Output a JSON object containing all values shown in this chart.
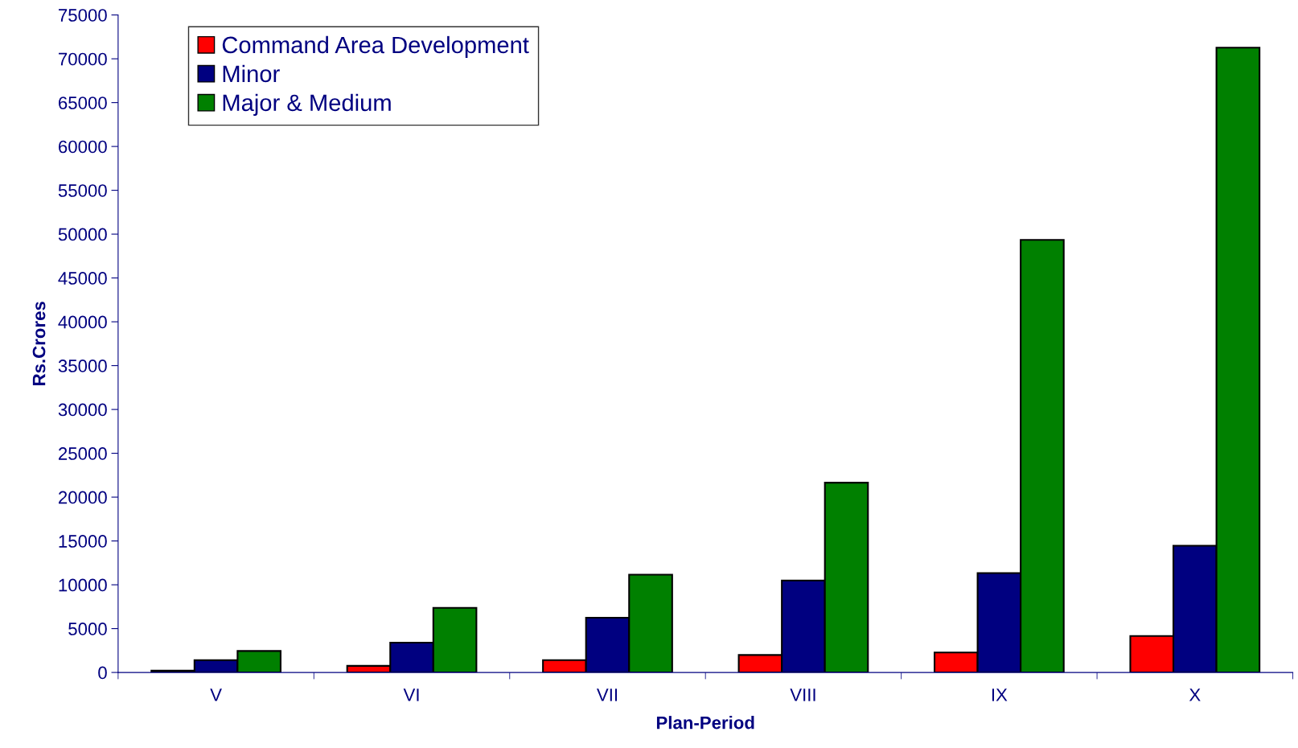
{
  "chart_data": {
    "type": "bar",
    "xlabel": "Plan-Period",
    "ylabel": "Rs.Crores",
    "categories": [
      "V",
      "VI",
      "VII",
      "VIII",
      "IX",
      "X"
    ],
    "series": [
      {
        "name": "Command Area Development",
        "color": "#ff0000",
        "values": [
          200,
          750,
          1400,
          1990,
          2270,
          4160
        ]
      },
      {
        "name": "Minor",
        "color": "#000080",
        "values": [
          1400,
          3400,
          6240,
          10490,
          11340,
          14460
        ]
      },
      {
        "name": "Major & Medium",
        "color": "#008000",
        "values": [
          2450,
          7370,
          11150,
          21650,
          49340,
          71270
        ]
      }
    ],
    "ylim": [
      0,
      75000
    ],
    "yticks": [
      0,
      5000,
      10000,
      15000,
      20000,
      25000,
      30000,
      35000,
      40000,
      45000,
      50000,
      55000,
      60000,
      65000,
      70000,
      75000
    ],
    "grid": false,
    "legend": "top left"
  }
}
